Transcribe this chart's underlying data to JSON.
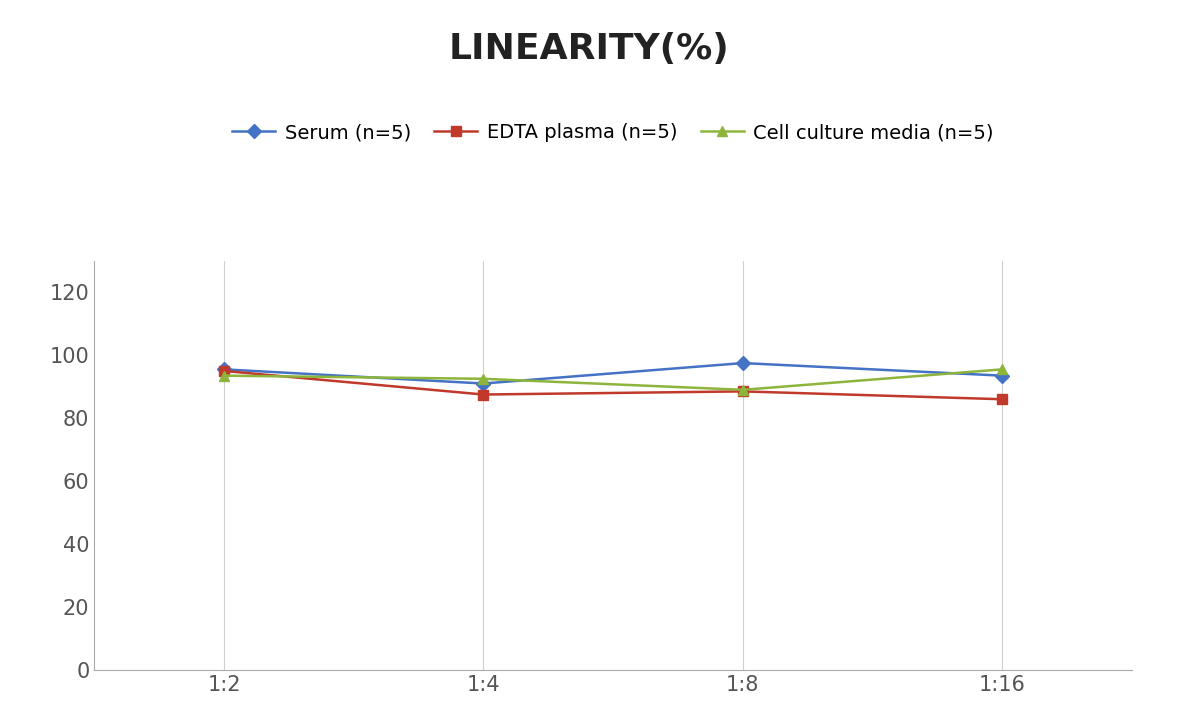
{
  "title": "LINEARITY(%)",
  "x_labels": [
    "1:2",
    "1:4",
    "1:8",
    "1:16"
  ],
  "x_positions": [
    0,
    1,
    2,
    3
  ],
  "series": [
    {
      "label": "Serum (n=5)",
      "values": [
        95.5,
        91.0,
        97.5,
        93.5
      ],
      "color": "#4472C4",
      "marker": "D",
      "linewidth": 1.8,
      "markersize": 7
    },
    {
      "label": "EDTA plasma (n=5)",
      "values": [
        95.0,
        87.5,
        88.5,
        86.0
      ],
      "color": "#C0392B",
      "marker": "s",
      "linewidth": 1.8,
      "markersize": 7
    },
    {
      "label": "Cell culture media (n=5)",
      "values": [
        93.5,
        92.5,
        89.0,
        95.5
      ],
      "color": "#8DB53C",
      "marker": "^",
      "linewidth": 1.8,
      "markersize": 7
    }
  ],
  "ylim": [
    0,
    130
  ],
  "yticks": [
    0,
    20,
    40,
    60,
    80,
    100,
    120
  ],
  "title_fontsize": 26,
  "tick_fontsize": 15,
  "legend_fontsize": 14,
  "background_color": "#ffffff",
  "grid_color": "#d0d0d0",
  "title_fontweight": "bold"
}
